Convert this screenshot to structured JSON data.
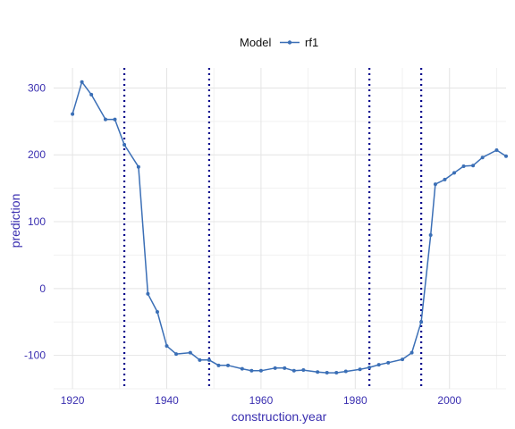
{
  "chart_data": {
    "type": "line",
    "title": "",
    "xlabel": "construction.year",
    "ylabel": "prediction",
    "xlim": [
      1916,
      2012
    ],
    "ylim": [
      -150,
      330
    ],
    "x_ticks": [
      1920,
      1940,
      1960,
      1980,
      2000
    ],
    "x_tick_labels": [
      "1920",
      "1940",
      "1960",
      "1980",
      "2000"
    ],
    "y_ticks": [
      -100,
      0,
      100,
      200,
      300
    ],
    "y_tick_labels": [
      "-100",
      "0",
      "100",
      "200",
      "300"
    ],
    "grid": true,
    "legend": {
      "title": "Model",
      "position": "top",
      "entries": [
        "rf1"
      ]
    },
    "series": [
      {
        "name": "rf1",
        "color": "#3b6fb6",
        "points": [
          [
            1920,
            261
          ],
          [
            1922,
            309
          ],
          [
            1924,
            290
          ],
          [
            1927,
            253
          ],
          [
            1929,
            253
          ],
          [
            1931,
            215
          ],
          [
            1934,
            182
          ],
          [
            1936,
            -8
          ],
          [
            1938,
            -35
          ],
          [
            1940,
            -86
          ],
          [
            1942,
            -98
          ],
          [
            1945,
            -96
          ],
          [
            1947,
            -107
          ],
          [
            1949,
            -107
          ],
          [
            1951,
            -115
          ],
          [
            1953,
            -115
          ],
          [
            1956,
            -120
          ],
          [
            1958,
            -123
          ],
          [
            1960,
            -123
          ],
          [
            1963,
            -119
          ],
          [
            1965,
            -119
          ],
          [
            1967,
            -123
          ],
          [
            1969,
            -122
          ],
          [
            1972,
            -125
          ],
          [
            1974,
            -126
          ],
          [
            1976,
            -126
          ],
          [
            1978,
            -124
          ],
          [
            1981,
            -121
          ],
          [
            1983,
            -118
          ],
          [
            1985,
            -114
          ],
          [
            1987,
            -111
          ],
          [
            1990,
            -106
          ],
          [
            1992,
            -96
          ],
          [
            1994,
            -50
          ],
          [
            1996,
            80
          ],
          [
            1997,
            156
          ],
          [
            1999,
            163
          ],
          [
            2001,
            173
          ],
          [
            2003,
            183
          ],
          [
            2005,
            184
          ],
          [
            2007,
            196
          ],
          [
            2010,
            207
          ],
          [
            2012,
            198
          ]
        ]
      }
    ],
    "vertical_lines": {
      "style": "dotted",
      "color": "#00008b",
      "x": [
        1931,
        1949,
        1983,
        1994
      ]
    }
  }
}
